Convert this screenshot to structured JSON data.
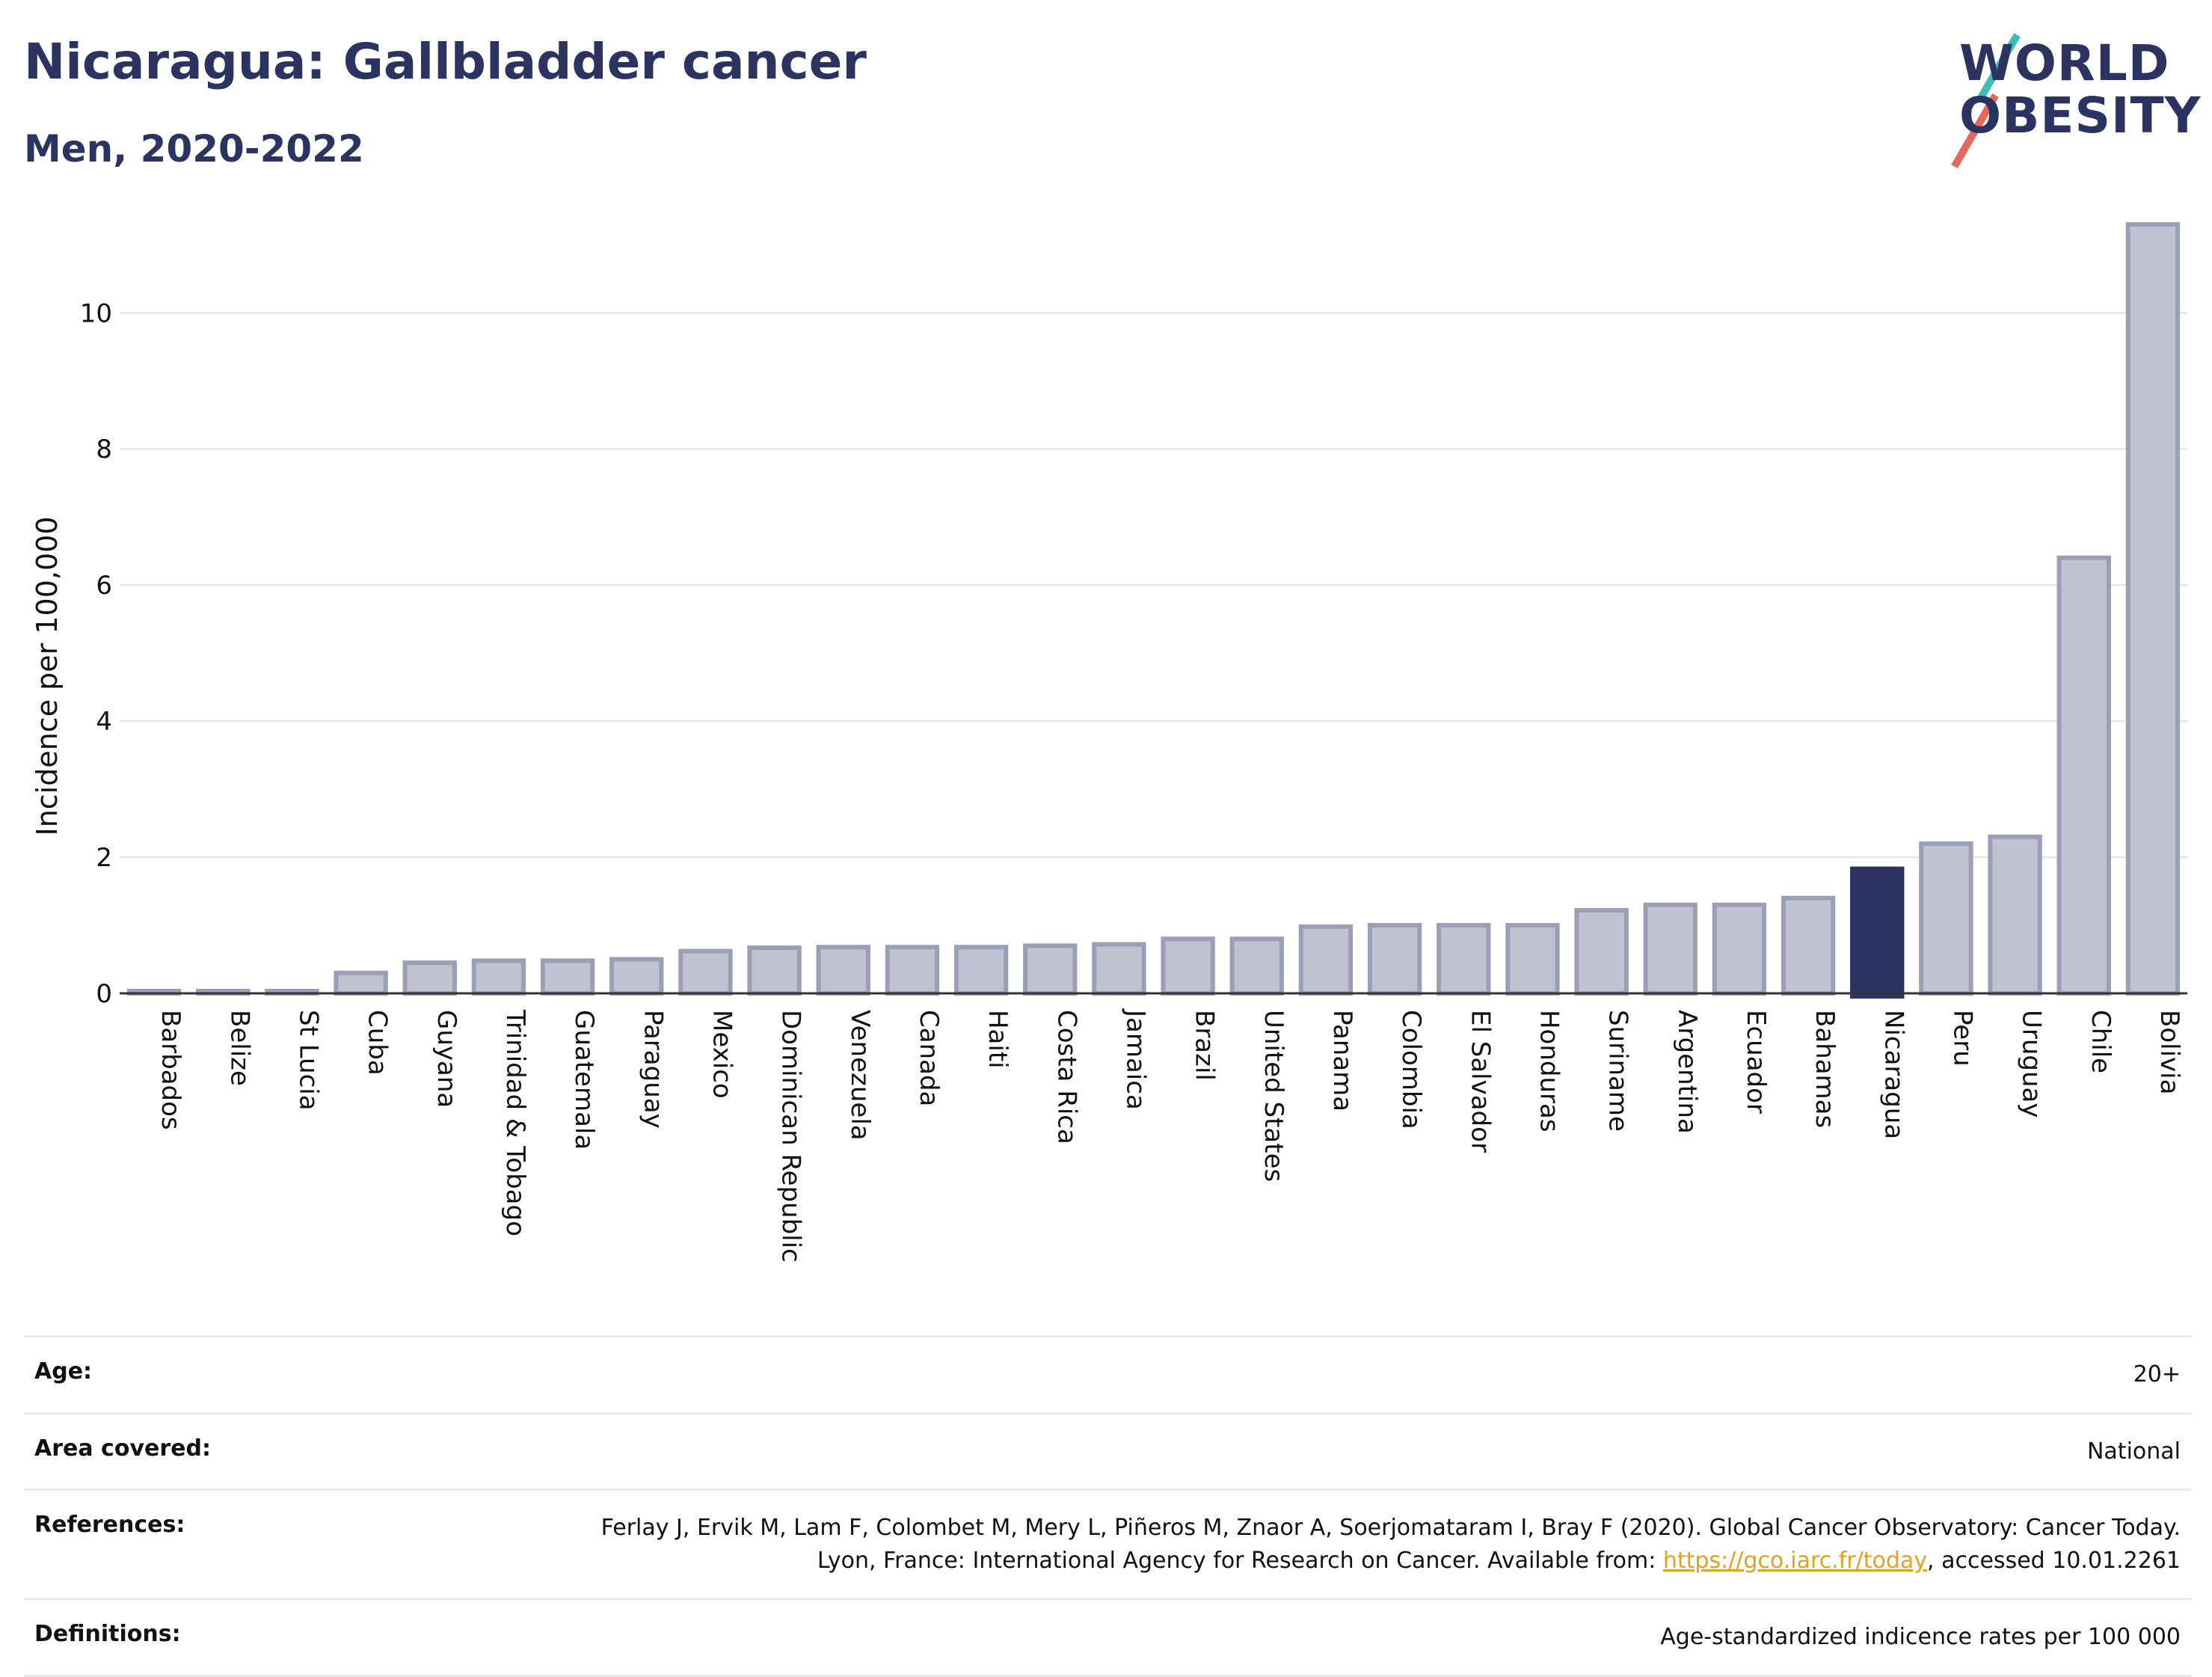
{
  "header": {
    "title": "Nicaragua: Gallbladder cancer",
    "subtitle": "Men, 2020-2022"
  },
  "logo": {
    "line1": "WORLD",
    "line2": "OBESITY"
  },
  "colors": {
    "bar": "#bfc2d0",
    "bar_stroke": "#9a9fb6",
    "highlight": "#2b3461",
    "grid": "#e6e6ea",
    "axis": "#333333"
  },
  "chart_data": {
    "type": "bar",
    "title": "Nicaragua: Gallbladder cancer",
    "subtitle": "Men, 2020-2022",
    "xlabel": "",
    "ylabel": "Incidence per 100,000",
    "ylim": [
      0,
      11.3
    ],
    "yticks": [
      0,
      2,
      4,
      6,
      8,
      10
    ],
    "grid": true,
    "highlight": "Nicaragua",
    "categories": [
      "Barbados",
      "Belize",
      "St Lucia",
      "Cuba",
      "Guyana",
      "Trinidad & Tobago",
      "Guatemala",
      "Paraguay",
      "Mexico",
      "Dominican Republic",
      "Venezuela",
      "Canada",
      "Haiti",
      "Costa Rica",
      "Jamaica",
      "Brazil",
      "United States",
      "Panama",
      "Colombia",
      "El Salvador",
      "Honduras",
      "Suriname",
      "Argentina",
      "Ecuador",
      "Bahamas",
      "Nicaragua",
      "Peru",
      "Uruguay",
      "Chile",
      "Bolivia"
    ],
    "values": [
      0.03,
      0.03,
      0.03,
      0.3,
      0.45,
      0.48,
      0.48,
      0.5,
      0.62,
      0.67,
      0.68,
      0.68,
      0.68,
      0.7,
      0.72,
      0.8,
      0.8,
      0.98,
      1.0,
      1.0,
      1.0,
      1.22,
      1.3,
      1.3,
      1.4,
      1.83,
      2.2,
      2.3,
      6.4,
      11.3
    ]
  },
  "footer": {
    "age_label": "Age:",
    "age_value": "20+",
    "area_label": "Area covered:",
    "area_value": "National",
    "references_label": "References:",
    "references_text": "Ferlay J, Ervik M, Lam F, Colombet M, Mery L, Piñeros M, Znaor A, Soerjomataram I, Bray F (2020). Global Cancer Observatory: Cancer Today. Lyon, France: International Agency for Research on Cancer. Available from:",
    "references_link": "https://gco.iarc.fr/today",
    "references_suffix": ", accessed 10.01.2261",
    "definitions_label": "Definitions:",
    "definitions_value": "Age-standardized indicence rates per 100 000"
  }
}
